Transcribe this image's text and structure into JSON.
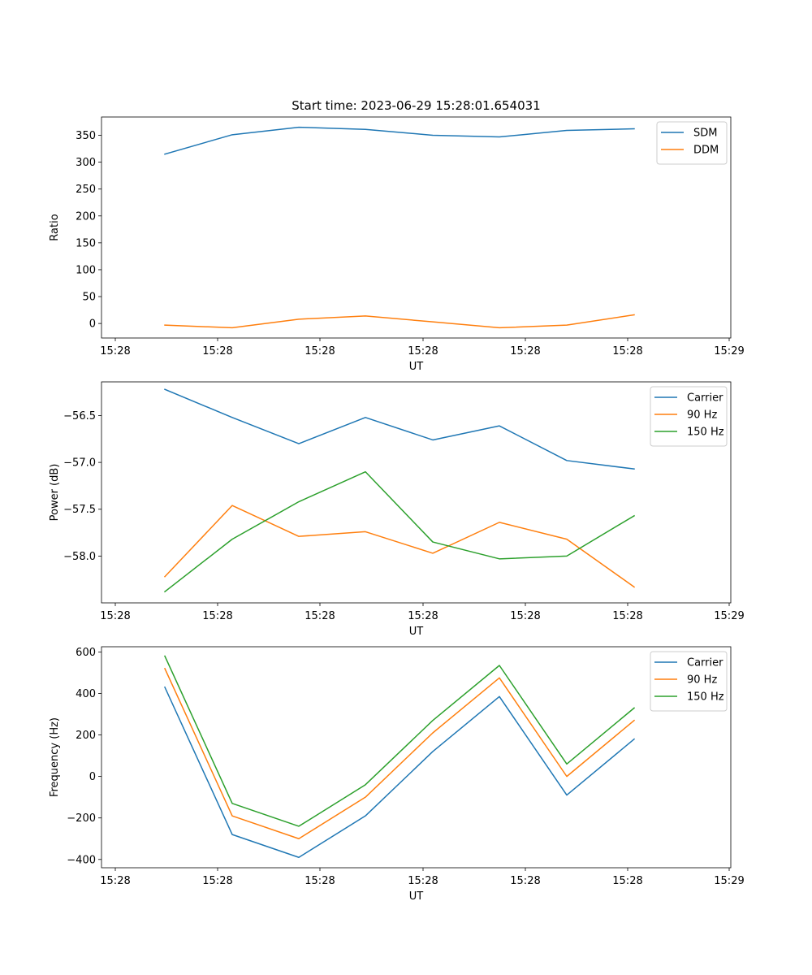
{
  "figure": {
    "title": "Start time: 2023-06-29 15:28:01.654031"
  },
  "chart_data": [
    {
      "type": "line",
      "title": "Start time: 2023-06-29 15:28:01.654031",
      "xlabel": "UT",
      "ylabel": "Ratio",
      "x_ticks": [
        "15:28",
        "15:28",
        "15:28",
        "15:28",
        "15:28",
        "15:28",
        "15:29"
      ],
      "y_ticks": [
        "0",
        "50",
        "100",
        "150",
        "200",
        "250",
        "300",
        "350"
      ],
      "ylim": [
        -27,
        384
      ],
      "grid": false,
      "legend": "top-right",
      "series": [
        {
          "name": "SDM",
          "color": "#1f77b4",
          "values": [
            315,
            351,
            365,
            361,
            350,
            347,
            359,
            362
          ]
        },
        {
          "name": "DDM",
          "color": "#ff7f0e",
          "values": [
            -3,
            -8,
            8,
            14,
            3,
            -8,
            -3,
            16
          ]
        }
      ]
    },
    {
      "type": "line",
      "title": "",
      "xlabel": "UT",
      "ylabel": "Power (dB)",
      "x_ticks": [
        "15:28",
        "15:28",
        "15:28",
        "15:28",
        "15:28",
        "15:28",
        "15:29"
      ],
      "y_ticks": [
        "-58.0",
        "-57.5",
        "-57.0",
        "-56.5"
      ],
      "ylim": [
        -58.5,
        -56.14
      ],
      "grid": false,
      "legend": "top-right",
      "series": [
        {
          "name": "Carrier",
          "color": "#1f77b4",
          "values": [
            -56.22,
            -56.52,
            -56.8,
            -56.52,
            -56.76,
            -56.61,
            -56.98,
            -57.07
          ]
        },
        {
          "name": "90 Hz",
          "color": "#ff7f0e",
          "values": [
            -58.22,
            -57.46,
            -57.79,
            -57.74,
            -57.97,
            -57.64,
            -57.82,
            -58.33
          ]
        },
        {
          "name": "150 Hz",
          "color": "#2ca02c",
          "values": [
            -58.38,
            -57.82,
            -57.42,
            -57.1,
            -57.85,
            -58.03,
            -58.0,
            -57.57
          ]
        }
      ]
    },
    {
      "type": "line",
      "title": "",
      "xlabel": "UT",
      "ylabel": "Frequency (Hz)",
      "x_ticks": [
        "15:28",
        "15:28",
        "15:28",
        "15:28",
        "15:28",
        "15:28",
        "15:29"
      ],
      "y_ticks": [
        "-400",
        "-200",
        "0",
        "200",
        "400",
        "600"
      ],
      "ylim": [
        -440,
        625
      ],
      "grid": false,
      "legend": "top-right",
      "series": [
        {
          "name": "Carrier",
          "color": "#1f77b4",
          "values": [
            430,
            -280,
            -390,
            -190,
            120,
            385,
            -90,
            180
          ]
        },
        {
          "name": "90 Hz",
          "color": "#ff7f0e",
          "values": [
            520,
            -190,
            -300,
            -100,
            210,
            475,
            0,
            270
          ]
        },
        {
          "name": "150 Hz",
          "color": "#2ca02c",
          "values": [
            580,
            -130,
            -240,
            -40,
            270,
            535,
            60,
            330
          ]
        }
      ]
    }
  ]
}
